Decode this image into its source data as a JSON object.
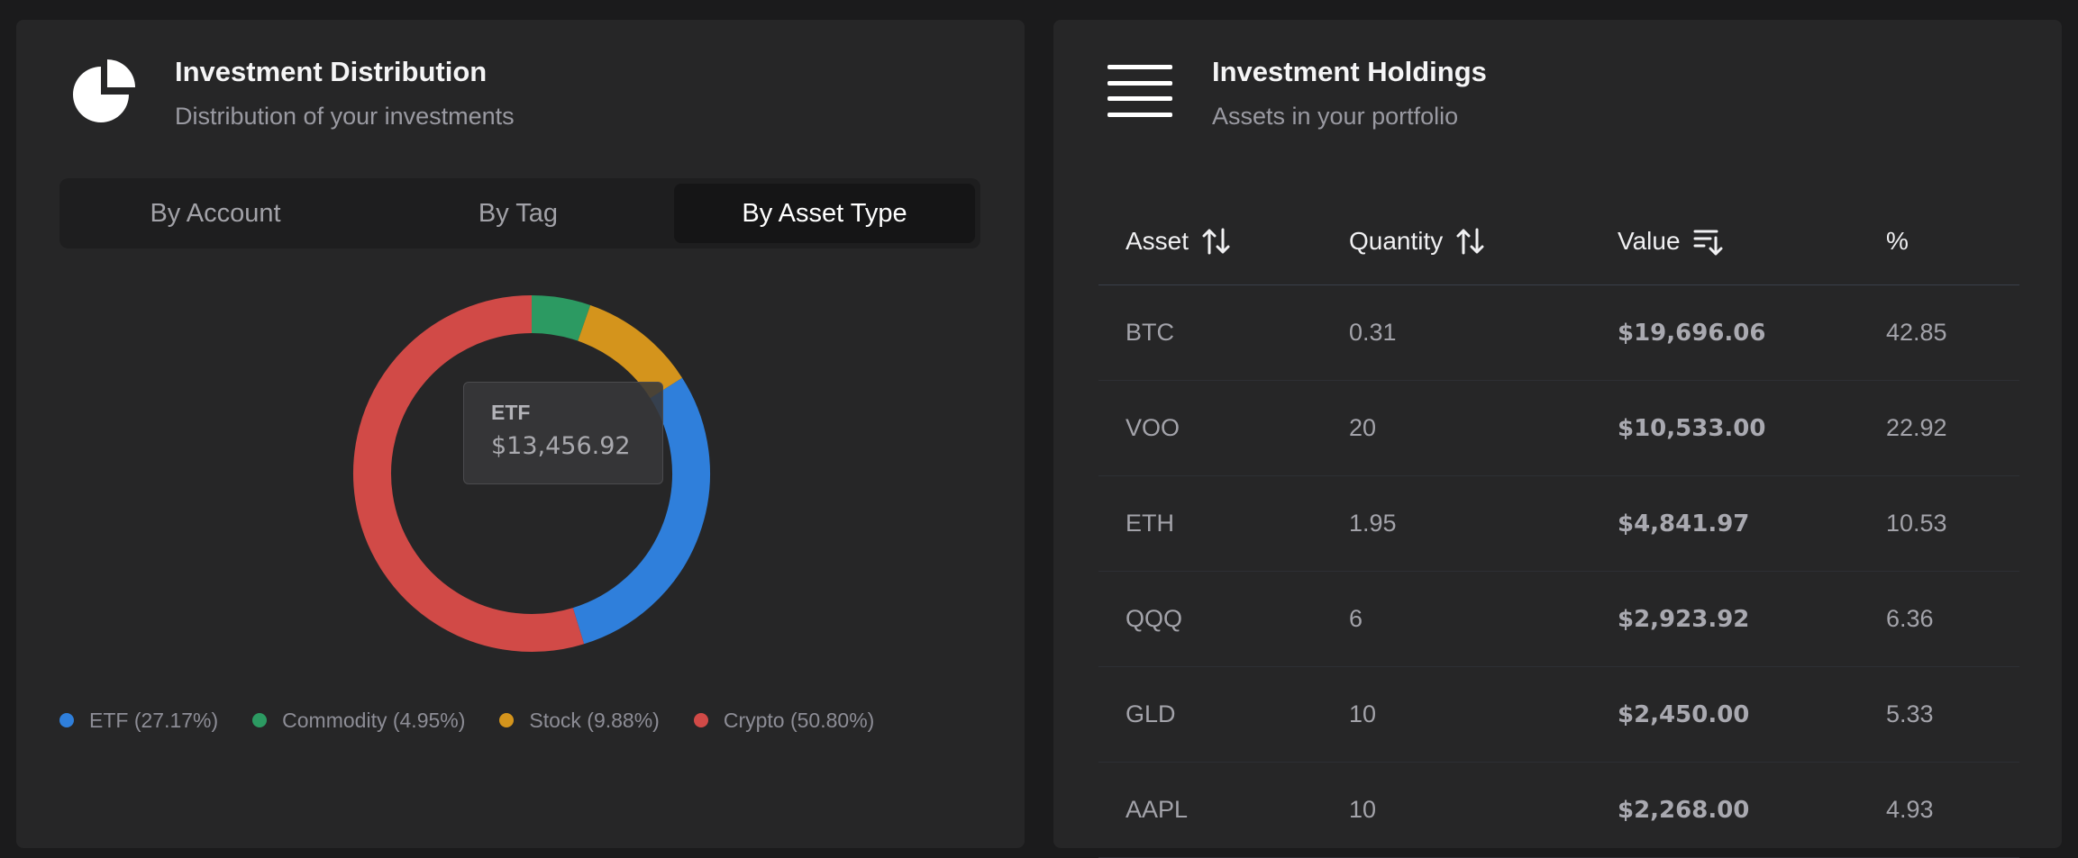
{
  "distribution": {
    "title": "Investment Distribution",
    "subtitle": "Distribution of your investments",
    "icon": "pie-chart-icon",
    "tabs": [
      {
        "label": "By Account",
        "active": false
      },
      {
        "label": "By Tag",
        "active": false
      },
      {
        "label": "By Asset Type",
        "active": true
      }
    ],
    "tooltip": {
      "label": "ETF",
      "value": "$13,456.92"
    },
    "legend": [
      {
        "label": "ETF (27.17%)",
        "color": "#2f7fdb"
      },
      {
        "label": "Commodity (4.95%)",
        "color": "#2c9a62"
      },
      {
        "label": "Stock (9.88%)",
        "color": "#d4941c"
      },
      {
        "label": "Crypto (50.80%)",
        "color": "#d14a47"
      }
    ]
  },
  "chart_data": {
    "type": "pie",
    "categories": [
      "Commodity",
      "Stock",
      "ETF",
      "Crypto"
    ],
    "values": [
      4.95,
      9.88,
      27.17,
      50.8
    ],
    "colors": [
      "#2c9a62",
      "#d4941c",
      "#2f7fdb",
      "#d14a47"
    ],
    "legend_position": "bottom"
  },
  "holdings": {
    "title": "Investment Holdings",
    "subtitle": "Assets in your portfolio",
    "icon": "menu-lines-icon",
    "columns": [
      {
        "label": "Asset",
        "sort_icon": "sort-arrows-icon"
      },
      {
        "label": "Quantity",
        "sort_icon": "sort-arrows-icon"
      },
      {
        "label": "Value",
        "sort_icon": "sort-descending-icon"
      },
      {
        "label": "%",
        "sort_icon": ""
      }
    ],
    "rows": [
      {
        "asset": "BTC",
        "quantity": "0.31",
        "value": "$19,696.06",
        "percent": "42.85"
      },
      {
        "asset": "VOO",
        "quantity": "20",
        "value": "$10,533.00",
        "percent": "22.92"
      },
      {
        "asset": "ETH",
        "quantity": "1.95",
        "value": "$4,841.97",
        "percent": "10.53"
      },
      {
        "asset": "QQQ",
        "quantity": "6",
        "value": "$2,923.92",
        "percent": "6.36"
      },
      {
        "asset": "GLD",
        "quantity": "10",
        "value": "$2,450.00",
        "percent": "5.33"
      },
      {
        "asset": "AAPL",
        "quantity": "10",
        "value": "$2,268.00",
        "percent": "4.93"
      }
    ]
  }
}
